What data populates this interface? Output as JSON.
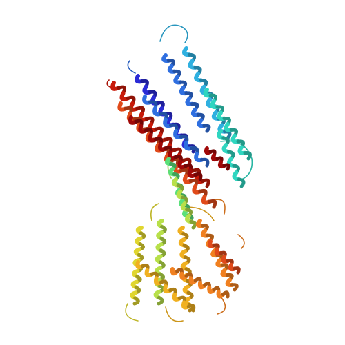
{
  "image": {
    "background": "#ffffff",
    "subject": "protein-ribbon-structure",
    "coloring": "rainbow",
    "palette": [
      "#2b2bd6",
      "#2f6fe0",
      "#2fb0e0",
      "#2fd6c0",
      "#5ae07a",
      "#b8e04a",
      "#e0d630",
      "#f0b020",
      "#f08020",
      "#e04a1a",
      "#c81a0a",
      "#a00808"
    ]
  }
}
